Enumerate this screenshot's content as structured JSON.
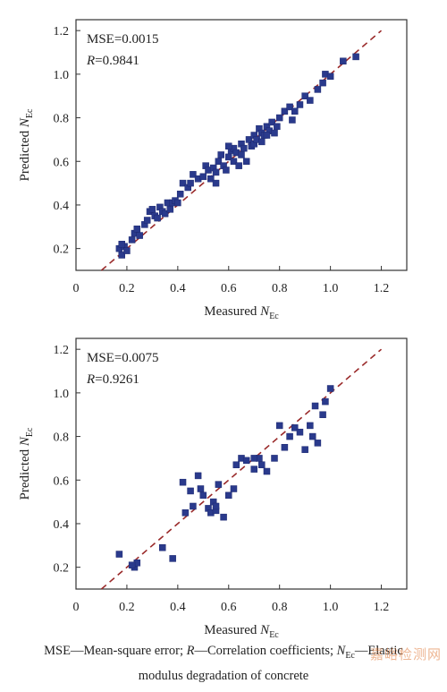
{
  "chart_data": [
    {
      "type": "scatter",
      "title": "",
      "xlabel_prefix": "Measured ",
      "ylabel_prefix": "Predicted ",
      "var_main": "N",
      "var_sub": "Ec",
      "xlim": [
        0,
        1.3
      ],
      "ylim": [
        0.1,
        1.25
      ],
      "x_ticks": [
        "0",
        "0.2",
        "0.4",
        "0.6",
        "0.8",
        "1.0",
        "1.2"
      ],
      "y_ticks": [
        "0.2",
        "0.4",
        "0.6",
        "0.8",
        "1.0",
        "1.2"
      ],
      "annotation_mse": "MSE=0.0015",
      "annotation_r_label": "R",
      "annotation_r_value": "=0.9841",
      "fit_line": [
        [
          0.1,
          0.1
        ],
        [
          1.2,
          1.2
        ]
      ],
      "x": [
        0.17,
        0.18,
        0.19,
        0.2,
        0.18,
        0.22,
        0.23,
        0.25,
        0.24,
        0.27,
        0.28,
        0.29,
        0.3,
        0.31,
        0.32,
        0.33,
        0.34,
        0.35,
        0.36,
        0.37,
        0.38,
        0.39,
        0.4,
        0.41,
        0.42,
        0.44,
        0.45,
        0.46,
        0.48,
        0.5,
        0.51,
        0.52,
        0.53,
        0.54,
        0.55,
        0.56,
        0.57,
        0.58,
        0.59,
        0.6,
        0.61,
        0.62,
        0.62,
        0.63,
        0.64,
        0.65,
        0.66,
        0.67,
        0.68,
        0.69,
        0.7,
        0.7,
        0.71,
        0.72,
        0.73,
        0.73,
        0.74,
        0.75,
        0.76,
        0.77,
        0.78,
        0.79,
        0.8,
        0.82,
        0.84,
        0.85,
        0.86,
        0.88,
        0.9,
        0.92,
        0.95,
        0.97,
        0.98,
        1.0,
        1.05,
        1.1,
        0.55,
        0.65,
        0.75,
        0.6
      ],
      "y": [
        0.2,
        0.17,
        0.21,
        0.19,
        0.22,
        0.24,
        0.27,
        0.26,
        0.29,
        0.31,
        0.33,
        0.37,
        0.38,
        0.35,
        0.34,
        0.39,
        0.37,
        0.36,
        0.41,
        0.38,
        0.41,
        0.42,
        0.41,
        0.45,
        0.5,
        0.48,
        0.5,
        0.54,
        0.52,
        0.53,
        0.58,
        0.56,
        0.52,
        0.57,
        0.55,
        0.6,
        0.63,
        0.58,
        0.56,
        0.62,
        0.65,
        0.6,
        0.66,
        0.64,
        0.58,
        0.68,
        0.66,
        0.6,
        0.7,
        0.67,
        0.72,
        0.68,
        0.7,
        0.75,
        0.73,
        0.69,
        0.72,
        0.76,
        0.74,
        0.78,
        0.73,
        0.76,
        0.8,
        0.83,
        0.85,
        0.79,
        0.83,
        0.86,
        0.9,
        0.88,
        0.93,
        0.96,
        1.0,
        0.99,
        1.06,
        1.08,
        0.5,
        0.63,
        0.72,
        0.67
      ],
      "grid": false
    },
    {
      "type": "scatter",
      "title": "",
      "xlabel_prefix": "Measured ",
      "ylabel_prefix": "Predicted ",
      "var_main": "N",
      "var_sub": "Ec",
      "xlim": [
        0,
        1.3
      ],
      "ylim": [
        0.1,
        1.25
      ],
      "x_ticks": [
        "0",
        "0.2",
        "0.4",
        "0.6",
        "0.8",
        "1.0",
        "1.2"
      ],
      "y_ticks": [
        "0.2",
        "0.4",
        "0.6",
        "0.8",
        "1.0",
        "1.2"
      ],
      "annotation_mse": "MSE=0.0075",
      "annotation_r_label": "R",
      "annotation_r_value": "=0.9261",
      "fit_line": [
        [
          0.1,
          0.1
        ],
        [
          1.2,
          1.2
        ]
      ],
      "x": [
        0.17,
        0.23,
        0.24,
        0.22,
        0.34,
        0.38,
        0.42,
        0.43,
        0.45,
        0.46,
        0.48,
        0.49,
        0.5,
        0.52,
        0.53,
        0.54,
        0.55,
        0.56,
        0.58,
        0.6,
        0.62,
        0.63,
        0.65,
        0.67,
        0.7,
        0.72,
        0.73,
        0.75,
        0.78,
        0.8,
        0.82,
        0.84,
        0.86,
        0.88,
        0.9,
        0.92,
        0.94,
        0.95,
        0.97,
        0.98,
        1.0,
        0.55,
        0.7,
        0.93
      ],
      "y": [
        0.26,
        0.2,
        0.22,
        0.21,
        0.29,
        0.24,
        0.59,
        0.45,
        0.55,
        0.48,
        0.62,
        0.56,
        0.53,
        0.47,
        0.45,
        0.5,
        0.46,
        0.58,
        0.43,
        0.53,
        0.56,
        0.67,
        0.7,
        0.69,
        0.65,
        0.7,
        0.67,
        0.64,
        0.7,
        0.85,
        0.75,
        0.8,
        0.84,
        0.82,
        0.74,
        0.85,
        0.94,
        0.77,
        0.9,
        0.96,
        1.02,
        0.48,
        0.7,
        0.8
      ],
      "grid": false
    }
  ],
  "caption": {
    "part1": "MSE—Mean-square error; ",
    "r_italic": "R",
    "part2": "—Correlation coefficients; ",
    "n_italic": "N",
    "n_sub": "Ec",
    "part3": "—Elastic",
    "line2": "modulus degradation of concrete"
  },
  "watermark": "嘉峪检测网",
  "colors": {
    "marker": "#2a3a8c",
    "fit_line": "#9a2a2a",
    "axis": "#333333"
  }
}
